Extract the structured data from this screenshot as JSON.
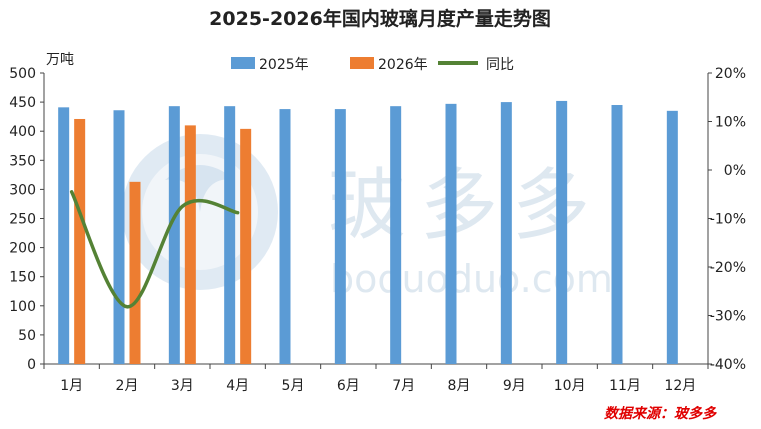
{
  "chart_data": {
    "type": "bar",
    "title": "2025-2026年国内玻璃月度产量走势图",
    "ylabel": "万吨",
    "categories": [
      "1月",
      "2月",
      "3月",
      "4月",
      "5月",
      "6月",
      "7月",
      "8月",
      "9月",
      "10月",
      "11月",
      "12月"
    ],
    "series": [
      {
        "name": "2025年",
        "type": "bar",
        "axis": "left",
        "color": "#5b9bd5",
        "values": [
          441,
          436,
          443,
          443,
          438,
          438,
          443,
          447,
          450,
          452,
          445,
          435
        ]
      },
      {
        "name": "2026年",
        "type": "bar",
        "axis": "left",
        "color": "#ed7d31",
        "values": [
          421,
          313,
          410,
          404,
          null,
          null,
          null,
          null,
          null,
          null,
          null,
          null
        ]
      },
      {
        "name": "同比",
        "type": "line",
        "axis": "right",
        "color": "#548235",
        "values": [
          -4.5,
          -28.2,
          -7.5,
          -8.8,
          null,
          null,
          null,
          null,
          null,
          null,
          null,
          null
        ]
      }
    ],
    "ylim": [
      0,
      500
    ],
    "yticks": [
      0,
      50,
      100,
      150,
      200,
      250,
      300,
      350,
      400,
      450,
      500
    ],
    "y2lim": [
      -40,
      20
    ],
    "y2ticks": [
      "-40%",
      "-30%",
      "-20%",
      "-10%",
      "0%",
      "10%",
      "20%"
    ],
    "legend_position": "top",
    "grid": false,
    "source_label": "数据来源：玻多多",
    "watermark": {
      "brand": "玻多多",
      "domain": "boduoduo.com"
    }
  }
}
